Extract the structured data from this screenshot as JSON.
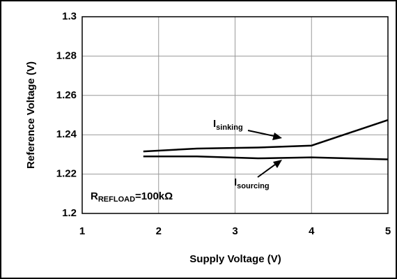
{
  "chart_data": {
    "type": "line",
    "xlabel": "Supply Voltage (V)",
    "ylabel": "Reference Voltage (V)",
    "xlim": [
      1,
      5
    ],
    "xticks": [
      1,
      2,
      3,
      4,
      5
    ],
    "ylim": [
      1.2,
      1.3
    ],
    "yticks": [
      1.2,
      1.22,
      1.24,
      1.26,
      1.28,
      1.3
    ],
    "grid": true,
    "series": [
      {
        "name": {
          "main": "I",
          "sub": "sinking"
        },
        "color": "#000000",
        "x": [
          1.8,
          2.5,
          3.3,
          4,
          5
        ],
        "values": [
          1.2315,
          1.233,
          1.2335,
          1.2345,
          1.2475
        ]
      },
      {
        "name": {
          "main": "I",
          "sub": "sourcing"
        },
        "color": "#000000",
        "x": [
          1.8,
          2.5,
          3.3,
          4,
          5
        ],
        "values": [
          1.229,
          1.229,
          1.228,
          1.2285,
          1.2275
        ]
      }
    ],
    "annotation": {
      "main": "R",
      "sub": "REFLOAD",
      "rest": "=100kΩ"
    }
  }
}
